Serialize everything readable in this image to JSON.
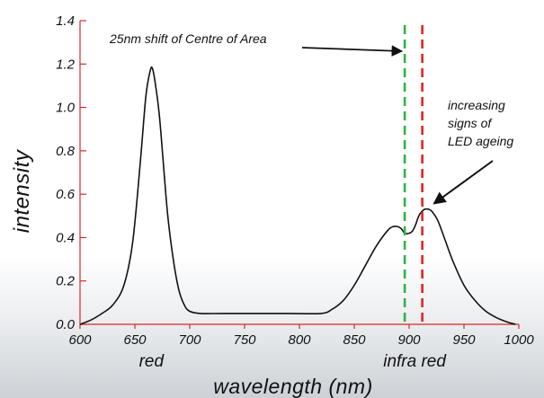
{
  "chart_data": {
    "type": "line",
    "title": "",
    "xlabel": "wavelength (nm)",
    "ylabel": "intensity",
    "xlim": [
      600,
      1000
    ],
    "ylim": [
      0.0,
      1.4
    ],
    "x_ticks": [
      "600",
      "650",
      "700",
      "750",
      "800",
      "850",
      "900",
      "950",
      "1000"
    ],
    "y_ticks": [
      "0.0",
      "0.2",
      "0.4",
      "0.6",
      "0.8",
      "1.0",
      "1.2",
      "1.4"
    ],
    "grid": false,
    "legend": "none",
    "series": [
      {
        "color": "#111111",
        "x": [
          600,
          610,
          620,
          630,
          640,
          648,
          655,
          660,
          664,
          666,
          668,
          672,
          676,
          680,
          685,
          690,
          695,
          700,
          710,
          730,
          760,
          790,
          820,
          830,
          840,
          850,
          860,
          870,
          880,
          885,
          890,
          893,
          896,
          900,
          903,
          906,
          908,
          910,
          914,
          918,
          921,
          926,
          932,
          940,
          950,
          960,
          970,
          980,
          990,
          997
        ],
        "y": [
          0.0,
          0.02,
          0.05,
          0.09,
          0.18,
          0.38,
          0.75,
          1.05,
          1.17,
          1.18,
          1.13,
          0.98,
          0.74,
          0.5,
          0.3,
          0.16,
          0.09,
          0.06,
          0.05,
          0.05,
          0.05,
          0.05,
          0.05,
          0.07,
          0.11,
          0.18,
          0.27,
          0.36,
          0.43,
          0.45,
          0.45,
          0.44,
          0.42,
          0.42,
          0.43,
          0.46,
          0.49,
          0.51,
          0.53,
          0.53,
          0.52,
          0.48,
          0.4,
          0.29,
          0.18,
          0.11,
          0.06,
          0.03,
          0.01,
          0.0
        ]
      }
    ],
    "categories": [
      {
        "label": "red",
        "x": 665
      },
      {
        "label": "infra red",
        "x": 905
      }
    ],
    "vlines": [
      {
        "x": 896,
        "color": "#2db34a"
      },
      {
        "x": 912,
        "color": "#e12424"
      }
    ],
    "annotations": [
      {
        "text": "25nm shift of Centre of Area",
        "target_x": 895,
        "target_y": 1.22,
        "direction": "right"
      },
      {
        "lines": [
          "increasing",
          "signs of",
          "LED ageing"
        ],
        "target_x": 921,
        "target_y": 0.54,
        "direction": "down-left"
      }
    ],
    "colors": {
      "axis": "#d42a2a",
      "curve": "#111111",
      "text": "#111111"
    }
  }
}
